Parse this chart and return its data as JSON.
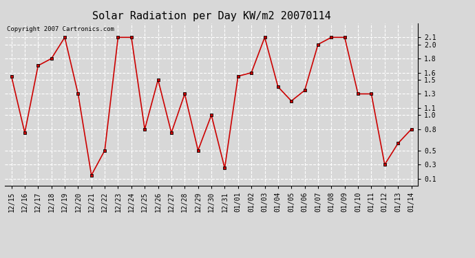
{
  "title": "Solar Radiation per Day KW/m2 20070114",
  "copyright_text": "Copyright 2007 Cartronics.com",
  "dates": [
    "12/15",
    "12/16",
    "12/17",
    "12/18",
    "12/19",
    "12/20",
    "12/21",
    "12/22",
    "12/23",
    "12/24",
    "12/25",
    "12/26",
    "12/27",
    "12/28",
    "12/29",
    "12/30",
    "12/31",
    "01/01",
    "01/02",
    "01/03",
    "01/04",
    "01/05",
    "01/06",
    "01/07",
    "01/08",
    "01/09",
    "01/10",
    "01/11",
    "01/12",
    "01/13",
    "01/14"
  ],
  "values": [
    1.55,
    0.75,
    1.7,
    1.8,
    2.1,
    1.3,
    0.15,
    0.5,
    2.1,
    2.1,
    0.8,
    1.5,
    0.75,
    1.3,
    0.5,
    1.0,
    0.25,
    1.55,
    1.6,
    2.1,
    1.4,
    1.2,
    1.35,
    2.0,
    2.1,
    2.1,
    1.3,
    1.3,
    0.3,
    0.6,
    0.8
  ],
  "line_color": "#cc0000",
  "marker": "s",
  "marker_size": 3,
  "marker_color": "#000000",
  "ylim": [
    0.0,
    2.3
  ],
  "yticks": [
    0.1,
    0.3,
    0.5,
    0.8,
    1.0,
    1.1,
    1.3,
    1.5,
    1.6,
    1.8,
    2.0,
    2.1
  ],
  "bg_color": "#d8d8d8",
  "plot_bg_color": "#d8d8d8",
  "grid_color": "#ffffff",
  "title_fontsize": 11,
  "tick_fontsize": 7,
  "copyright_fontsize": 6.5
}
